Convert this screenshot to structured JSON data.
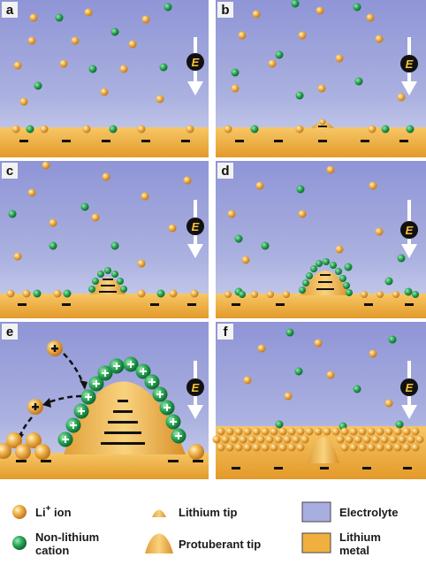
{
  "panels": [
    {
      "id": "a",
      "label": "a",
      "field_label": "E"
    },
    {
      "id": "b",
      "label": "b",
      "field_label": "E"
    },
    {
      "id": "c",
      "label": "c",
      "field_label": "E"
    },
    {
      "id": "d",
      "label": "d",
      "field_label": "E"
    },
    {
      "id": "e",
      "label": "e",
      "field_label": "E"
    },
    {
      "id": "f",
      "label": "f",
      "field_label": "E"
    }
  ],
  "legend": {
    "li_ion": {
      "text": "Li",
      "superscript": "+",
      "suffix": " ion"
    },
    "non_lithium": {
      "line1": "Non-lithium",
      "line2": "cation"
    },
    "lithium_tip": "Lithium tip",
    "protuberant_tip": "Protuberant tip",
    "electrolyte": "Electrolyte",
    "lithium_metal": {
      "line1": "Lithium",
      "line2": "metal"
    }
  },
  "colors": {
    "electrolyte_top": "#8f95d6",
    "electrolyte_bottom": "#c5cdea",
    "lithium_metal": "#f0b040",
    "lithium_metal_dark": "#d99020",
    "li_ion": "#e8a33a",
    "non_lithium_cation": "#1f9a4a",
    "panel_label_bg": "#f2f2f2"
  },
  "symbols": {
    "plus": "+",
    "minus": "−"
  }
}
